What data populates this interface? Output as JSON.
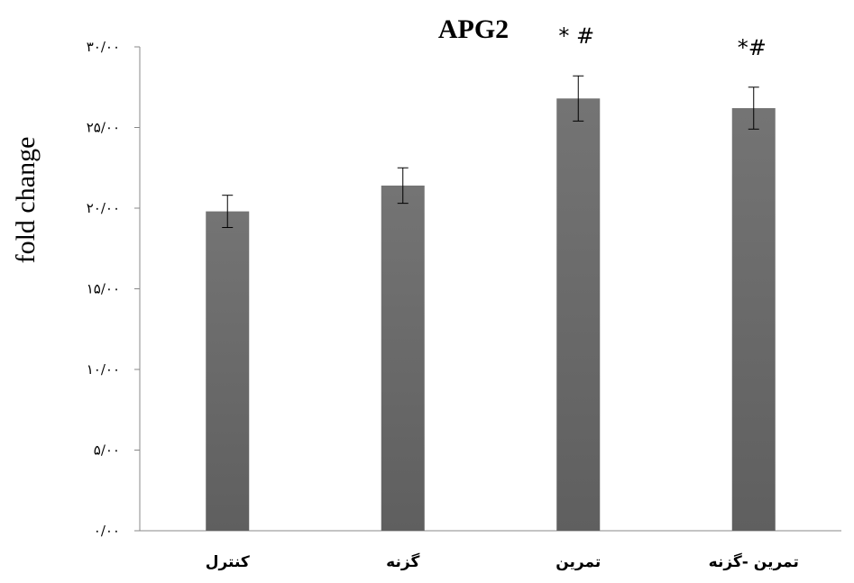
{
  "chart_data": {
    "type": "bar",
    "title": "APG2",
    "xlabel": "",
    "ylabel": "fold change",
    "ylim": [
      0,
      30
    ],
    "yticks": [
      0,
      5,
      10,
      15,
      20,
      25,
      30
    ],
    "ytick_labels": [
      "۰/۰۰",
      "۵/۰۰",
      "۱۰/۰۰",
      "۱۵/۰۰",
      "۲۰/۰۰",
      "۲۵/۰۰",
      "۳۰/۰۰"
    ],
    "categories": [
      "کنترل",
      "گزنه",
      "تمرین",
      "تمرین -گزنه"
    ],
    "values": [
      19.8,
      21.4,
      26.8,
      26.2
    ],
    "errors": [
      1.0,
      1.1,
      1.4,
      1.3
    ],
    "annotations": [
      "",
      "",
      "* #",
      "*#"
    ],
    "grid": false,
    "legend": "none",
    "bar_color": "#5f5f5f"
  }
}
